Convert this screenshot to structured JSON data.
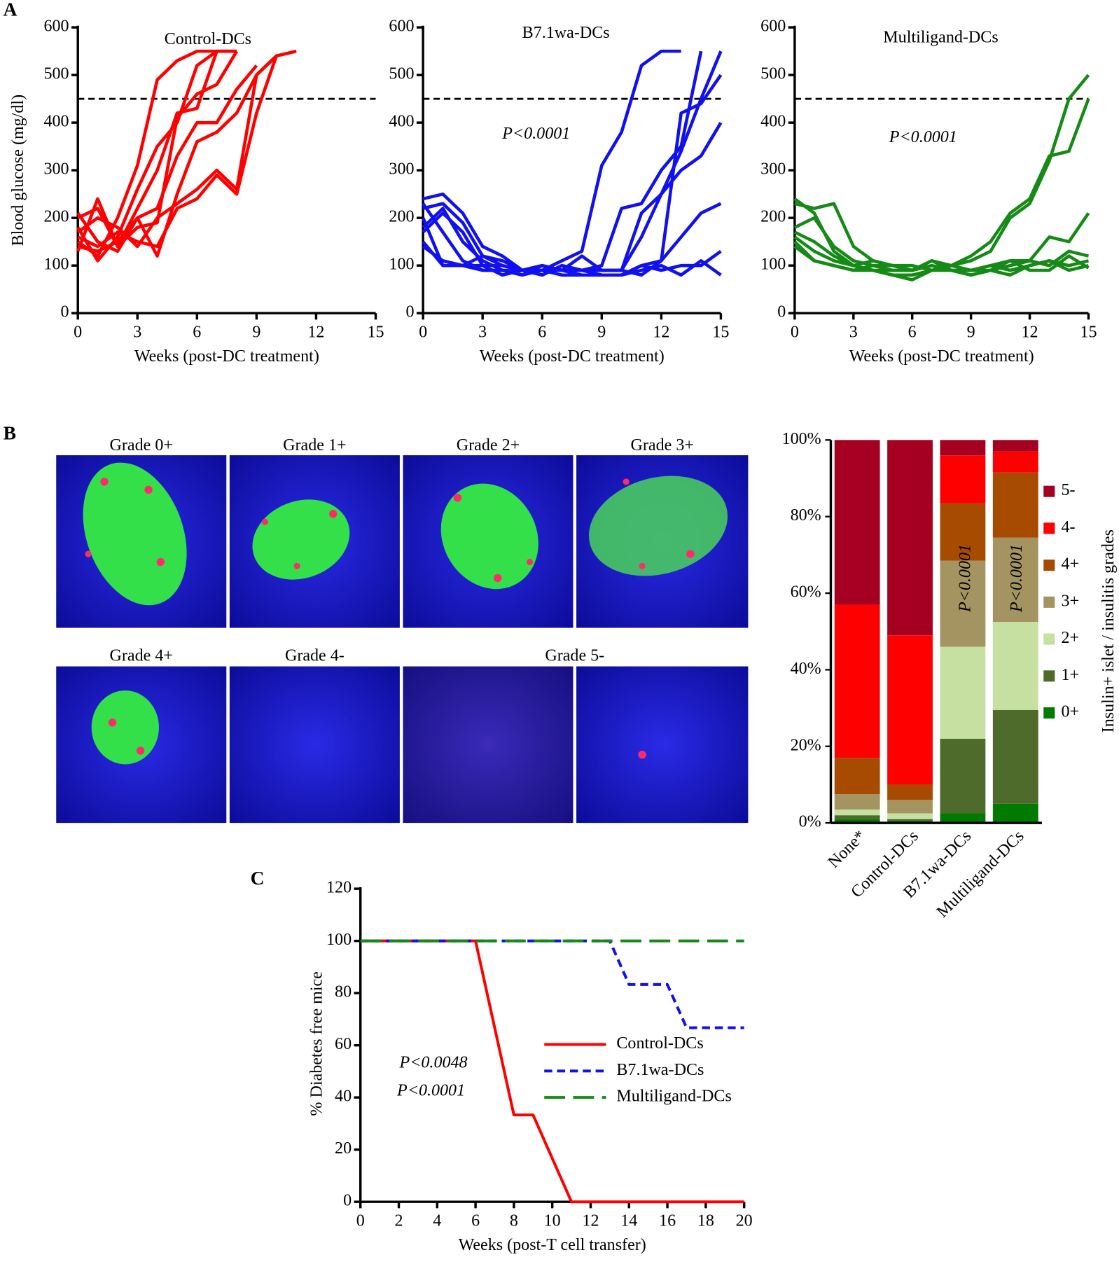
{
  "panel_labels": [
    "A",
    "B",
    "C"
  ],
  "micrographs": {
    "labels": [
      "Grade 0+",
      "Grade 1+",
      "Grade 2+",
      "Grade 3+",
      "Grade 4+",
      "Grade 4-",
      "Grade 5-"
    ]
  },
  "chart_data": [
    {
      "type": "line",
      "title": "Control-DCs",
      "y_label": "Blood glucose (mg/dl)",
      "x_label": "Weeks (post-DC treatment)",
      "xlim": [
        0,
        15
      ],
      "xticks": [
        0,
        3,
        6,
        9,
        12,
        15
      ],
      "ylim": [
        0,
        600
      ],
      "yticks": [
        0,
        100,
        200,
        300,
        400,
        500,
        600
      ],
      "threshold": 450,
      "color": "#ff0000",
      "x": [
        0,
        1,
        2,
        3,
        4,
        5,
        6,
        7,
        8,
        9,
        10,
        11
      ],
      "series": [
        {
          "values": [
            150,
            120,
            200,
            310,
            490,
            530,
            550,
            550,
            null,
            null,
            null,
            null
          ]
        },
        {
          "values": [
            200,
            220,
            140,
            220,
            300,
            420,
            430,
            550,
            550,
            null,
            null,
            null
          ]
        },
        {
          "values": [
            180,
            110,
            160,
            260,
            350,
            400,
            520,
            550,
            550,
            null,
            null,
            null
          ]
        },
        {
          "values": [
            130,
            240,
            140,
            180,
            190,
            410,
            460,
            480,
            550,
            null,
            null,
            null
          ]
        },
        {
          "values": [
            210,
            150,
            130,
            200,
            120,
            250,
            360,
            380,
            420,
            500,
            540,
            550
          ]
        },
        {
          "values": [
            170,
            200,
            180,
            140,
            200,
            230,
            260,
            300,
            260,
            500,
            540,
            null
          ]
        },
        {
          "values": [
            140,
            130,
            150,
            200,
            220,
            330,
            400,
            400,
            470,
            520,
            null,
            null
          ]
        },
        {
          "values": [
            160,
            140,
            170,
            150,
            140,
            220,
            240,
            290,
            250,
            420,
            540,
            null
          ]
        }
      ]
    },
    {
      "type": "line",
      "title": "B7.1wa-DCs",
      "x_label": "Weeks (post-DC treatment)",
      "annotations": [
        {
          "text": "P<0.0001",
          "color": "#2020ff"
        }
      ],
      "xlim": [
        0,
        15
      ],
      "xticks": [
        0,
        3,
        6,
        9,
        12,
        15
      ],
      "ylim": [
        0,
        600
      ],
      "yticks": [
        0,
        100,
        200,
        300,
        400,
        500,
        600
      ],
      "threshold": 450,
      "color": "#1010f0",
      "x": [
        0,
        1,
        2,
        3,
        4,
        5,
        6,
        7,
        8,
        9,
        10,
        11,
        12,
        13,
        14,
        15
      ],
      "series": [
        {
          "values": [
            240,
            250,
            210,
            140,
            120,
            90,
            90,
            110,
            130,
            310,
            380,
            520,
            550,
            550,
            null,
            null
          ]
        },
        {
          "values": [
            220,
            230,
            190,
            120,
            100,
            90,
            80,
            100,
            90,
            100,
            220,
            230,
            300,
            350,
            550,
            null
          ]
        },
        {
          "values": [
            200,
            100,
            100,
            90,
            90,
            80,
            90,
            90,
            120,
            90,
            90,
            160,
            250,
            340,
            450,
            550
          ]
        },
        {
          "values": [
            180,
            220,
            150,
            110,
            90,
            90,
            80,
            100,
            90,
            80,
            80,
            100,
            110,
            420,
            440,
            500
          ]
        },
        {
          "values": [
            150,
            100,
            100,
            100,
            100,
            90,
            100,
            90,
            90,
            90,
            90,
            210,
            250,
            300,
            330,
            400
          ]
        },
        {
          "values": [
            170,
            210,
            170,
            100,
            80,
            90,
            100,
            90,
            90,
            90,
            90,
            80,
            110,
            160,
            210,
            230
          ]
        },
        {
          "values": [
            140,
            110,
            100,
            120,
            110,
            90,
            90,
            80,
            80,
            80,
            80,
            100,
            90,
            100,
            100,
            130
          ]
        },
        {
          "values": [
            230,
            170,
            110,
            90,
            90,
            80,
            100,
            90,
            80,
            80,
            80,
            90,
            100,
            80,
            110,
            80
          ]
        }
      ]
    },
    {
      "type": "line",
      "title": "Multiligand-DCs",
      "x_label": "Weeks (post-DC treatment)",
      "annotations": [
        {
          "text": "P<0.0001",
          "color": "#1a8a1a"
        }
      ],
      "xlim": [
        0,
        15
      ],
      "xticks": [
        0,
        3,
        6,
        9,
        12,
        15
      ],
      "ylim": [
        0,
        600
      ],
      "yticks": [
        0,
        100,
        200,
        300,
        400,
        500,
        600
      ],
      "threshold": 450,
      "color": "#168a16",
      "x": [
        0,
        1,
        2,
        3,
        4,
        5,
        6,
        7,
        8,
        9,
        10,
        11,
        12,
        13,
        14,
        15
      ],
      "series": [
        {
          "values": [
            240,
            210,
            130,
            100,
            110,
            100,
            90,
            110,
            100,
            120,
            150,
            210,
            240,
            330,
            340,
            450
          ]
        },
        {
          "values": [
            230,
            220,
            230,
            140,
            110,
            100,
            100,
            90,
            100,
            110,
            130,
            200,
            230,
            320,
            450,
            500
          ]
        },
        {
          "values": [
            180,
            200,
            140,
            110,
            100,
            90,
            90,
            100,
            90,
            90,
            100,
            110,
            110,
            160,
            150,
            210
          ]
        },
        {
          "values": [
            160,
            130,
            110,
            100,
            90,
            90,
            90,
            100,
            90,
            80,
            90,
            100,
            110,
            100,
            130,
            120
          ]
        },
        {
          "values": [
            150,
            110,
            100,
            90,
            100,
            100,
            90,
            110,
            90,
            90,
            100,
            90,
            100,
            110,
            100,
            110
          ]
        },
        {
          "values": [
            170,
            150,
            120,
            100,
            90,
            80,
            70,
            90,
            100,
            90,
            90,
            110,
            90,
            90,
            120,
            95
          ]
        },
        {
          "values": [
            140,
            110,
            100,
            90,
            90,
            80,
            80,
            90,
            90,
            80,
            90,
            80,
            100,
            110,
            90,
            100
          ]
        }
      ]
    },
    {
      "type": "stacked_bar",
      "y_label": "Insulin+ islet / insulitis grades",
      "annotations": [
        {
          "text": "P<0.0001",
          "color": "#ffffff"
        },
        {
          "text": "P<0.0001",
          "color": "#ffffff"
        }
      ],
      "categories": [
        "None*",
        "Control-DCs",
        "B7.1wa-DCs",
        "Multiligand-DCs"
      ],
      "ylim": [
        0,
        100
      ],
      "yticks": [
        {
          "value": 0,
          "label": "0%"
        },
        {
          "value": 20,
          "label": "20%"
        },
        {
          "value": 40,
          "label": "40%"
        },
        {
          "value": 60,
          "label": "60%"
        },
        {
          "value": 80,
          "label": "80%"
        },
        {
          "value": 100,
          "label": "100%"
        }
      ],
      "series": [
        {
          "name": "5-",
          "color": "#a50021",
          "values": [
            43,
            51,
            4,
            3
          ]
        },
        {
          "name": "4-",
          "color": "#ff0000",
          "values": [
            40,
            39,
            12.5,
            5.5
          ]
        },
        {
          "name": "4+",
          "color": "#a64b00",
          "values": [
            9.5,
            4,
            15,
            17
          ]
        },
        {
          "name": "3+",
          "color": "#a39461",
          "values": [
            4,
            3.5,
            22.5,
            22
          ]
        },
        {
          "name": "2+",
          "color": "#c6e0a2",
          "values": [
            1.5,
            1.5,
            24,
            23
          ]
        },
        {
          "name": "1+",
          "color": "#4e6b2c",
          "values": [
            1,
            0.5,
            19.5,
            24.5
          ]
        },
        {
          "name": "0+",
          "color": "#007a00",
          "values": [
            1,
            0.5,
            2.5,
            5
          ]
        }
      ]
    },
    {
      "type": "step_line",
      "y_label": "% Diabetes free mice",
      "x_label": "Weeks (post-T cell transfer)",
      "annotations": [
        {
          "text": "P<0.0048",
          "color": "#2020ff"
        },
        {
          "text": "P<0.0001",
          "color": "#1a8a1a"
        }
      ],
      "xlim": [
        0,
        20
      ],
      "xticks": [
        0,
        2,
        4,
        6,
        8,
        10,
        12,
        14,
        16,
        18,
        20
      ],
      "ylim": [
        0,
        120
      ],
      "yticks": [
        0,
        20,
        40,
        60,
        80,
        100,
        120
      ],
      "series": [
        {
          "name": "Control-DCs",
          "color": "#ff0000",
          "dash": "solid",
          "x": [
            0,
            6,
            8,
            9,
            11,
            20
          ],
          "values": [
            100,
            100,
            33.3,
            33.3,
            0,
            0
          ]
        },
        {
          "name": "B7.1wa-DCs",
          "color": "#1010f0",
          "dash": "short",
          "x": [
            0,
            13,
            14,
            16,
            17,
            20
          ],
          "values": [
            100,
            100,
            83.3,
            83.3,
            66.7,
            66.7
          ]
        },
        {
          "name": "Multiligand-DCs",
          "color": "#168a16",
          "dash": "long",
          "x": [
            0,
            20
          ],
          "values": [
            100,
            100
          ]
        }
      ]
    }
  ]
}
